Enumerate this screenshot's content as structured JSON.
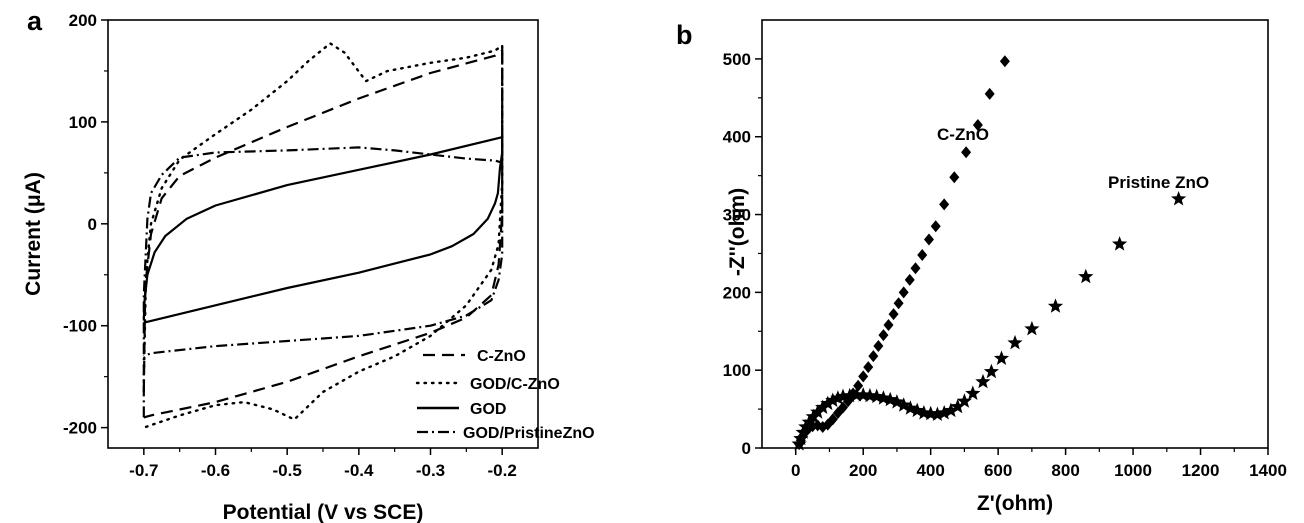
{
  "chart_data": [
    {
      "panel_label": "a",
      "type": "line",
      "xlabel": "Potential (V vs SCE)",
      "ylabel": "Current (μA)",
      "xlim": [
        -0.75,
        -0.15
      ],
      "ylim": [
        -220,
        200
      ],
      "xticks": [
        -0.7,
        -0.6,
        -0.5,
        -0.4,
        -0.3,
        -0.2
      ],
      "xtick_labels": [
        "-0.7",
        "-0.6",
        "-0.5",
        "-0.4",
        "-0.3",
        "-0.2"
      ],
      "yticks": [
        -200,
        -100,
        0,
        100,
        200
      ],
      "ytick_labels": [
        "-200",
        "-100",
        "0",
        "100",
        "200"
      ],
      "legend_position": "bottom-right",
      "series": [
        {
          "name": "C-ZnO",
          "dash": "dashed",
          "points": [
            [
              -0.7,
              -165
            ],
            [
              -0.698,
              -60
            ],
            [
              -0.69,
              -10
            ],
            [
              -0.675,
              25
            ],
            [
              -0.65,
              47
            ],
            [
              -0.6,
              65
            ],
            [
              -0.5,
              95
            ],
            [
              -0.4,
              123
            ],
            [
              -0.3,
              148
            ],
            [
              -0.21,
              165
            ],
            [
              -0.2,
              170
            ],
            [
              -0.2,
              10
            ],
            [
              -0.205,
              -40
            ],
            [
              -0.215,
              -70
            ],
            [
              -0.25,
              -92
            ],
            [
              -0.3,
              -107
            ],
            [
              -0.4,
              -130
            ],
            [
              -0.5,
              -155
            ],
            [
              -0.6,
              -175
            ],
            [
              -0.69,
              -188
            ],
            [
              -0.7,
              -190
            ]
          ]
        },
        {
          "name": "GOD/C-ZnO",
          "dash": "dotted",
          "points": [
            [
              -0.7,
              -155
            ],
            [
              -0.697,
              -50
            ],
            [
              -0.69,
              0
            ],
            [
              -0.675,
              35
            ],
            [
              -0.65,
              63
            ],
            [
              -0.6,
              88
            ],
            [
              -0.55,
              112
            ],
            [
              -0.5,
              140
            ],
            [
              -0.47,
              160
            ],
            [
              -0.44,
              177
            ],
            [
              -0.42,
              168
            ],
            [
              -0.39,
              140
            ],
            [
              -0.36,
              150
            ],
            [
              -0.3,
              158
            ],
            [
              -0.25,
              163
            ],
            [
              -0.21,
              170
            ],
            [
              -0.2,
              175
            ],
            [
              -0.2,
              40
            ],
            [
              -0.205,
              -20
            ],
            [
              -0.215,
              -45
            ],
            [
              -0.25,
              -80
            ],
            [
              -0.3,
              -110
            ],
            [
              -0.35,
              -130
            ],
            [
              -0.4,
              -145
            ],
            [
              -0.45,
              -165
            ],
            [
              -0.49,
              -192
            ],
            [
              -0.52,
              -182
            ],
            [
              -0.56,
              -175
            ],
            [
              -0.6,
              -178
            ],
            [
              -0.65,
              -188
            ],
            [
              -0.7,
              -200
            ]
          ]
        },
        {
          "name": "GOD",
          "dash": "solid",
          "points": [
            [
              -0.7,
              -95
            ],
            [
              -0.699,
              -75
            ],
            [
              -0.695,
              -50
            ],
            [
              -0.685,
              -28
            ],
            [
              -0.67,
              -12
            ],
            [
              -0.64,
              5
            ],
            [
              -0.6,
              18
            ],
            [
              -0.5,
              38
            ],
            [
              -0.4,
              53
            ],
            [
              -0.3,
              68
            ],
            [
              -0.2,
              85
            ],
            [
              -0.2,
              70
            ],
            [
              -0.203,
              55
            ],
            [
              -0.206,
              30
            ],
            [
              -0.21,
              20
            ],
            [
              -0.22,
              5
            ],
            [
              -0.24,
              -10
            ],
            [
              -0.27,
              -22
            ],
            [
              -0.3,
              -30
            ],
            [
              -0.4,
              -48
            ],
            [
              -0.5,
              -63
            ],
            [
              -0.6,
              -80
            ],
            [
              -0.7,
              -97
            ]
          ]
        },
        {
          "name": "GOD/PristineZnO",
          "dash": "dashdot",
          "points": [
            [
              -0.7,
              -190
            ],
            [
              -0.7,
              -70
            ],
            [
              -0.695,
              5
            ],
            [
              -0.69,
              30
            ],
            [
              -0.675,
              48
            ],
            [
              -0.65,
              65
            ],
            [
              -0.6,
              70
            ],
            [
              -0.5,
              72
            ],
            [
              -0.4,
              75
            ],
            [
              -0.35,
              72
            ],
            [
              -0.3,
              68
            ],
            [
              -0.25,
              64
            ],
            [
              -0.21,
              62
            ],
            [
              -0.2,
              60
            ],
            [
              -0.2,
              175
            ],
            [
              -0.2,
              -30
            ],
            [
              -0.205,
              -55
            ],
            [
              -0.215,
              -75
            ],
            [
              -0.25,
              -90
            ],
            [
              -0.3,
              -100
            ],
            [
              -0.4,
              -110
            ],
            [
              -0.5,
              -115
            ],
            [
              -0.6,
              -120
            ],
            [
              -0.69,
              -127
            ],
            [
              -0.7,
              -130
            ]
          ]
        }
      ]
    },
    {
      "panel_label": "b",
      "type": "scatter",
      "xlabel": "Z'(ohm)",
      "ylabel": "-Z''(ohm)",
      "xlim": [
        -100,
        1400
      ],
      "ylim": [
        0,
        550
      ],
      "xticks": [
        0,
        200,
        400,
        600,
        800,
        1000,
        1200,
        1400
      ],
      "xtick_labels": [
        "0",
        "200",
        "400",
        "600",
        "800",
        "1000",
        "1200",
        "1400"
      ],
      "yticks": [
        0,
        100,
        200,
        300,
        400,
        500
      ],
      "ytick_labels": [
        "0",
        "100",
        "200",
        "300",
        "400",
        "500"
      ],
      "series": [
        {
          "name": "C-ZnO",
          "marker": "diamond",
          "points": [
            [
              10,
              5
            ],
            [
              15,
              10
            ],
            [
              20,
              15
            ],
            [
              28,
              20
            ],
            [
              38,
              25
            ],
            [
              50,
              28
            ],
            [
              65,
              29
            ],
            [
              80,
              27
            ],
            [
              95,
              30
            ],
            [
              110,
              37
            ],
            [
              125,
              45
            ],
            [
              140,
              52
            ],
            [
              155,
              60
            ],
            [
              170,
              70
            ],
            [
              185,
              80
            ],
            [
              200,
              92
            ],
            [
              215,
              104
            ],
            [
              230,
              118
            ],
            [
              245,
              131
            ],
            [
              260,
              145
            ],
            [
              275,
              158
            ],
            [
              290,
              172
            ],
            [
              305,
              186
            ],
            [
              320,
              200
            ],
            [
              338,
              216
            ],
            [
              355,
              231
            ],
            [
              375,
              248
            ],
            [
              395,
              268
            ],
            [
              415,
              285
            ],
            [
              440,
              313
            ],
            [
              470,
              348
            ],
            [
              505,
              380
            ],
            [
              540,
              415
            ],
            [
              575,
              455
            ],
            [
              620,
              497
            ]
          ]
        },
        {
          "name": "Pristine ZnO",
          "marker": "star",
          "points": [
            [
              10,
              5
            ],
            [
              15,
              12
            ],
            [
              22,
              20
            ],
            [
              30,
              27
            ],
            [
              40,
              33
            ],
            [
              52,
              40
            ],
            [
              65,
              46
            ],
            [
              80,
              52
            ],
            [
              95,
              57
            ],
            [
              110,
              61
            ],
            [
              125,
              64
            ],
            [
              140,
              66
            ],
            [
              160,
              67
            ],
            [
              180,
              68
            ],
            [
              200,
              68
            ],
            [
              220,
              67
            ],
            [
              240,
              66
            ],
            [
              260,
              64
            ],
            [
              280,
              62
            ],
            [
              300,
              59
            ],
            [
              320,
              55
            ],
            [
              340,
              51
            ],
            [
              360,
              48
            ],
            [
              380,
              45
            ],
            [
              400,
              44
            ],
            [
              420,
              43
            ],
            [
              440,
              45
            ],
            [
              460,
              48
            ],
            [
              480,
              53
            ],
            [
              500,
              60
            ],
            [
              525,
              70
            ],
            [
              555,
              85
            ],
            [
              580,
              98
            ],
            [
              610,
              115
            ],
            [
              650,
              135
            ],
            [
              700,
              153
            ],
            [
              770,
              182
            ],
            [
              860,
              220
            ],
            [
              960,
              262
            ],
            [
              1135,
              320
            ]
          ]
        }
      ],
      "annotations": [
        {
          "text": "C-ZnO"
        },
        {
          "text": "Pristine ZnO"
        }
      ]
    }
  ]
}
